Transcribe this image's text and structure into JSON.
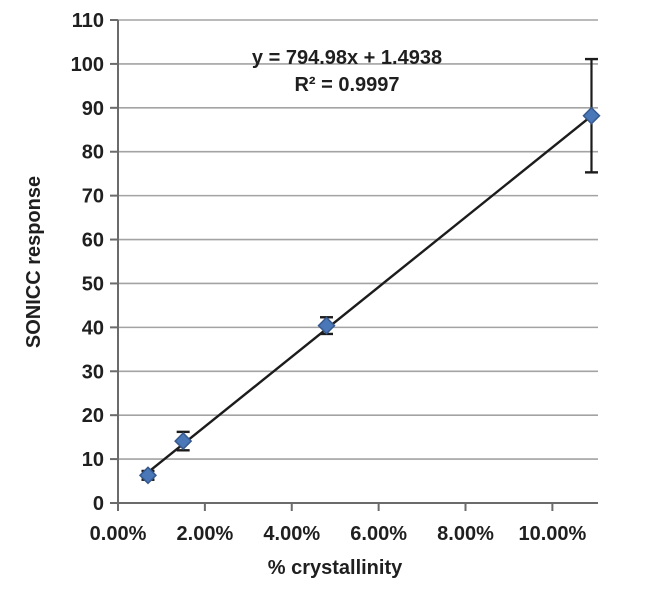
{
  "figure": {
    "background": "#ffffff"
  },
  "chart_data": {
    "type": "scatter",
    "title": "",
    "xlabel": "% crystallinity",
    "ylabel": "SONICC response",
    "xlim": [
      0,
      11.05
    ],
    "ylim": [
      0,
      110
    ],
    "x_ticks": [
      0,
      2,
      4,
      6,
      8,
      10
    ],
    "x_tick_labels": [
      "0.00%",
      "2.00%",
      "4.00%",
      "6.00%",
      "8.00%",
      "10.00%"
    ],
    "y_ticks": [
      0,
      10,
      20,
      30,
      40,
      50,
      60,
      70,
      80,
      90,
      100,
      110
    ],
    "y_tick_labels": [
      "0",
      "10",
      "20",
      "30",
      "40",
      "50",
      "60",
      "70",
      "80",
      "90",
      "100",
      "110"
    ],
    "grid": "horizontal",
    "legend": "none",
    "series": [
      {
        "name": "SONICC response vs % crystallinity",
        "marker": "diamond",
        "points": [
          {
            "x_pct": 0.69,
            "y": 6.3,
            "y_err": 1.0
          },
          {
            "x_pct": 1.5,
            "y": 14.1,
            "y_err": 2.1
          },
          {
            "x_pct": 4.8,
            "y": 40.4,
            "y_err": 1.9
          },
          {
            "x_pct": 10.9,
            "y": 88.2,
            "y_err": 12.9
          }
        ]
      }
    ],
    "trendline": {
      "slope_per_fraction": 794.98,
      "intercept": 1.4938
    },
    "annotation": {
      "equation": "y = 794.98x + 1.4938",
      "r_squared": "R² = 0.9997"
    }
  },
  "colors": {
    "marker_fill": "#4a77b8",
    "marker_stroke": "#36598f",
    "trendline": "#1c1c1c",
    "error_bar": "#1c1c1c",
    "gridline": "#a3a3a3",
    "axis": "#6b6b6b",
    "text": "#1f1f1f"
  }
}
